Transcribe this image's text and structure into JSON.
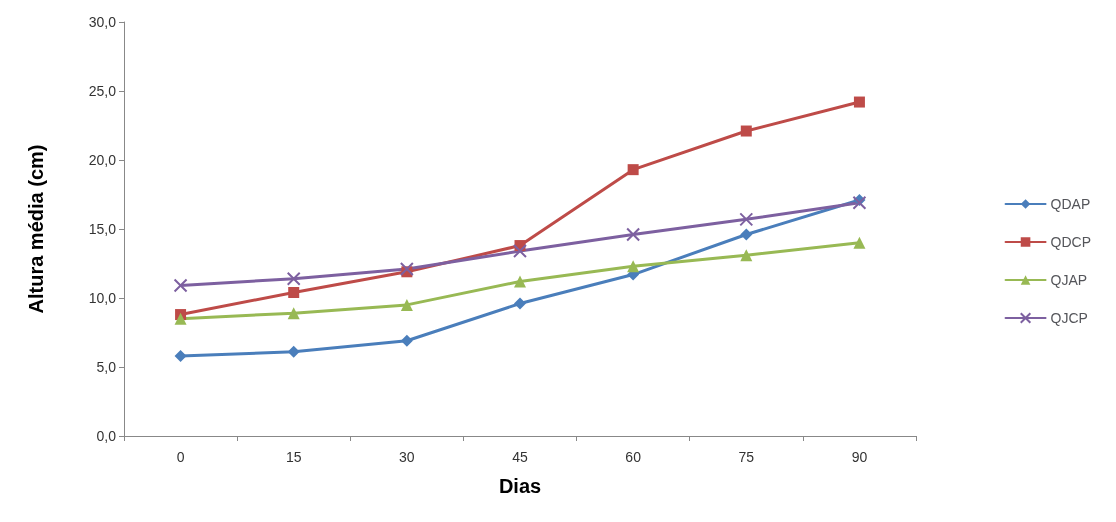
{
  "chart_data": {
    "type": "line",
    "xlabel": "Dias",
    "ylabel": "Altura média (cm)",
    "categories": [
      "0",
      "15",
      "30",
      "45",
      "60",
      "75",
      "90"
    ],
    "series": [
      {
        "name": "QDAP",
        "color": "#4a7ebb",
        "marker": "diamond",
        "values": [
          5.8,
          6.1,
          6.9,
          9.6,
          11.7,
          14.6,
          17.1
        ]
      },
      {
        "name": "QDCP",
        "color": "#be4b48",
        "marker": "square",
        "values": [
          8.8,
          10.4,
          11.9,
          13.8,
          19.3,
          22.1,
          24.2
        ]
      },
      {
        "name": "QJAP",
        "color": "#98b954",
        "marker": "triangle",
        "values": [
          8.5,
          8.9,
          9.5,
          11.2,
          12.3,
          13.1,
          14.0
        ]
      },
      {
        "name": "QJCP",
        "color": "#7d60a0",
        "marker": "cross",
        "values": [
          10.9,
          11.4,
          12.1,
          13.4,
          14.6,
          15.7,
          16.9
        ]
      }
    ],
    "ylim": [
      0,
      30
    ],
    "yticks": [
      {
        "value": 0,
        "label": "0,0"
      },
      {
        "value": 5,
        "label": "5,0"
      },
      {
        "value": 10,
        "label": "10,0"
      },
      {
        "value": 15,
        "label": "15,0"
      },
      {
        "value": 20,
        "label": "20,0"
      },
      {
        "value": 25,
        "label": "25,0"
      },
      {
        "value": 30,
        "label": "30,0"
      }
    ],
    "grid": false,
    "legend": "right",
    "line_style": "solid"
  }
}
